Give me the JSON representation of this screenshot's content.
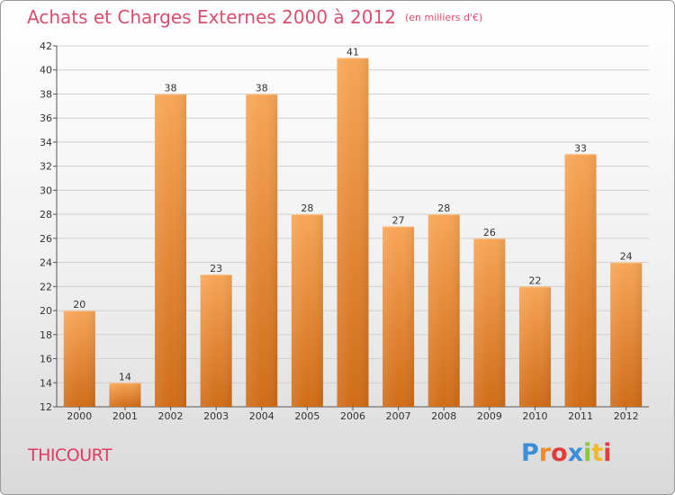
{
  "header": {
    "title": "Achats et Charges Externes 2000 à 2012",
    "unit": "(en milliers d'€)"
  },
  "place": "THICOURT",
  "logo": {
    "text": "Proxiti"
  },
  "colors": {
    "bar_top": "#f7a556",
    "bar_bottom": "#d06c17",
    "title": "#d94f6e",
    "grid": "#d0d0d0"
  },
  "chart_data": {
    "type": "bar",
    "title": "Achats et Charges Externes 2000 à 2012",
    "subtitle": "(en milliers d'€)",
    "xlabel": "",
    "ylabel": "",
    "categories": [
      "2000",
      "2001",
      "2002",
      "2003",
      "2004",
      "2005",
      "2006",
      "2007",
      "2008",
      "2009",
      "2010",
      "2011",
      "2012"
    ],
    "values": [
      20,
      14,
      38,
      23,
      38,
      28,
      41,
      27,
      28,
      26,
      22,
      33,
      24
    ],
    "ylim": [
      12,
      42
    ],
    "yticks": [
      12,
      14,
      16,
      18,
      20,
      22,
      24,
      26,
      28,
      30,
      32,
      34,
      36,
      38,
      40,
      42
    ],
    "grid": true,
    "data_labels": true,
    "legend": "none"
  }
}
